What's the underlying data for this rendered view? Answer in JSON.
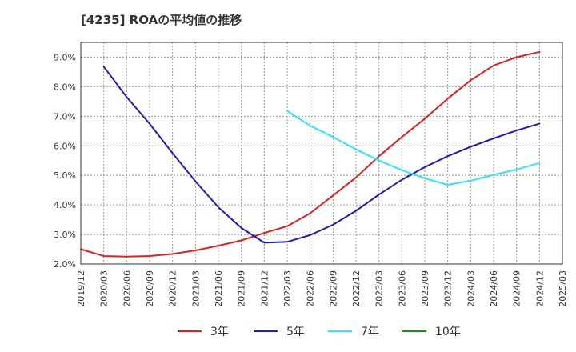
{
  "chart_data": {
    "type": "line",
    "title": "[4235]  ROAの平均値の推移",
    "xlabel": "",
    "ylabel": "",
    "x": [
      "2019/12",
      "2020/03",
      "2020/06",
      "2020/09",
      "2020/12",
      "2021/03",
      "2021/06",
      "2021/09",
      "2021/12",
      "2022/03",
      "2022/06",
      "2022/09",
      "2022/12",
      "2023/03",
      "2023/06",
      "2023/09",
      "2023/12",
      "2024/03",
      "2024/06",
      "2024/09",
      "2024/12",
      "2025/03"
    ],
    "yticks": [
      "2.0%",
      "3.0%",
      "4.0%",
      "5.0%",
      "6.0%",
      "7.0%",
      "8.0%",
      "9.0%"
    ],
    "ylim": [
      2.0,
      9.5
    ],
    "grid": true,
    "legend_position": "bottom",
    "series": [
      {
        "name": "3年",
        "color": "#dd2222",
        "values": [
          2.5,
          2.27,
          2.25,
          2.27,
          2.34,
          2.46,
          2.62,
          2.8,
          3.05,
          3.28,
          3.72,
          4.32,
          4.93,
          5.65,
          6.3,
          6.92,
          7.6,
          8.22,
          8.72,
          9.0,
          9.18,
          null
        ]
      },
      {
        "name": "5年",
        "color": "#1f1fb2",
        "values": [
          null,
          8.68,
          7.65,
          6.75,
          5.75,
          4.8,
          3.92,
          3.22,
          2.72,
          2.75,
          2.98,
          3.33,
          3.8,
          4.35,
          4.85,
          5.28,
          5.65,
          5.97,
          6.25,
          6.52,
          6.75,
          null
        ]
      },
      {
        "name": "7年",
        "color": "#33e5f0",
        "values": [
          null,
          null,
          null,
          null,
          null,
          null,
          null,
          null,
          null,
          7.18,
          6.68,
          6.3,
          5.88,
          5.5,
          5.18,
          4.9,
          4.68,
          4.82,
          5.02,
          5.2,
          5.42,
          null
        ]
      },
      {
        "name": "10年",
        "color": "#228b22",
        "values": [
          null,
          null,
          null,
          null,
          null,
          null,
          null,
          null,
          null,
          null,
          null,
          null,
          null,
          null,
          null,
          null,
          null,
          null,
          null,
          null,
          null,
          null
        ]
      }
    ]
  }
}
